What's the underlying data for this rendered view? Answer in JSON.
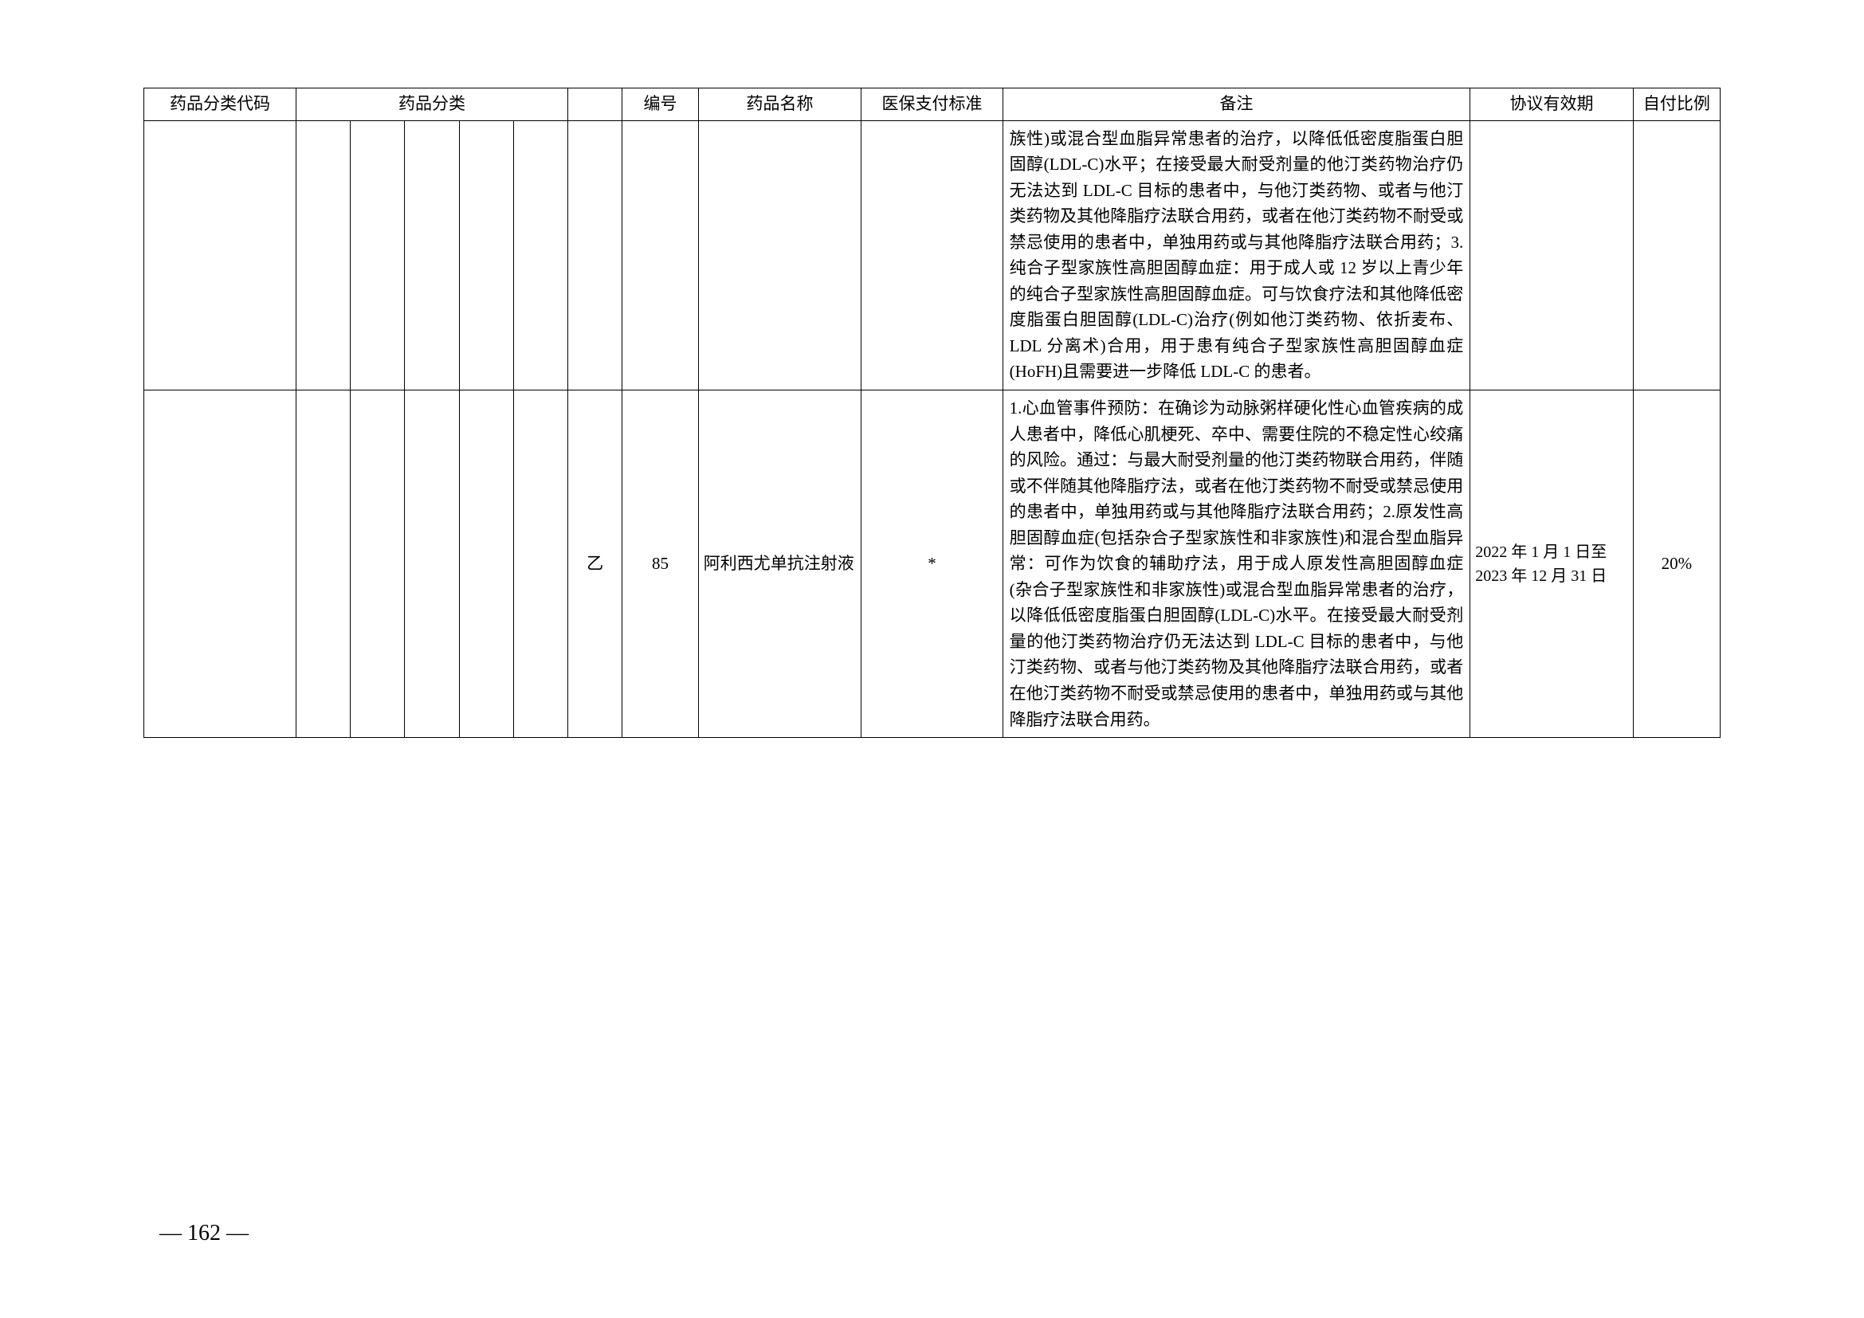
{
  "table": {
    "headers": {
      "code": "药品分类代码",
      "category": "药品分类",
      "num": "编号",
      "name": "药品名称",
      "std": "医保支付标准",
      "remark": "备注",
      "period": "协议有效期",
      "ratio": "自付比例"
    },
    "rows": [
      {
        "code": "",
        "cat1": "",
        "cat2": "",
        "cat3": "",
        "cat4": "",
        "cat5": "",
        "cls": "",
        "num": "",
        "name": "",
        "std": "",
        "remark": "族性)或混合型血脂异常患者的治疗，以降低低密度脂蛋白胆固醇(LDL-C)水平；在接受最大耐受剂量的他汀类药物治疗仍无法达到 LDL-C 目标的患者中，与他汀类药物、或者与他汀类药物及其他降脂疗法联合用药，或者在他汀类药物不耐受或禁忌使用的患者中，单独用药或与其他降脂疗法联合用药；3.纯合子型家族性高胆固醇血症：用于成人或 12 岁以上青少年的纯合子型家族性高胆固醇血症。可与饮食疗法和其他降低密度脂蛋白胆固醇(LDL-C)治疗(例如他汀类药物、依折麦布、LDL 分离术)合用，用于患有纯合子型家族性高胆固醇血症(HoFH)且需要进一步降低 LDL-C 的患者。",
        "period": "",
        "ratio": ""
      },
      {
        "code": "",
        "cat1": "",
        "cat2": "",
        "cat3": "",
        "cat4": "",
        "cat5": "",
        "cls": "乙",
        "num": "85",
        "name": "阿利西尤单抗注射液",
        "std": "*",
        "remark": "1.心血管事件预防：在确诊为动脉粥样硬化性心血管疾病的成人患者中，降低心肌梗死、卒中、需要住院的不稳定性心绞痛的风险。通过：与最大耐受剂量的他汀类药物联合用药，伴随或不伴随其他降脂疗法，或者在他汀类药物不耐受或禁忌使用的患者中，单独用药或与其他降脂疗法联合用药；2.原发性高胆固醇血症(包括杂合子型家族性和非家族性)和混合型血脂异常：可作为饮食的辅助疗法，用于成人原发性高胆固醇血症(杂合子型家族性和非家族性)或混合型血脂异常患者的治疗，以降低低密度脂蛋白胆固醇(LDL-C)水平。在接受最大耐受剂量的他汀类药物治疗仍无法达到 LDL-C 目标的患者中，与他汀类药物、或者与他汀类药物及其他降脂疗法联合用药，或者在他汀类药物不耐受或禁忌使用的患者中，单独用药或与其他降脂疗法联合用药。",
        "period": "2022 年 1 月 1 日至2023 年 12 月 31 日",
        "ratio": "20%"
      }
    ]
  },
  "pageNumber": "— 162 —"
}
